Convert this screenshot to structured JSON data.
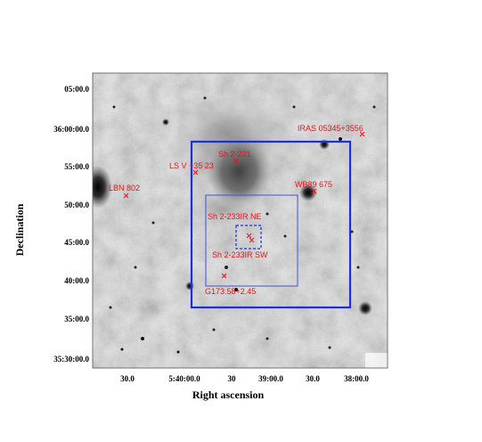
{
  "figure": {
    "xlabel": "Right ascension",
    "ylabel": "Declination",
    "x_ticks": [
      "30.0",
      "5:40:00.0",
      "30",
      "39:00.0",
      "30.0",
      "38:00.0"
    ],
    "y_ticks": [
      "05:00.0",
      "36:00:00.0",
      "55:00.0",
      "50:00.0",
      "45:00.0",
      "40:00.0",
      "35:00.0",
      "35:30:00.0"
    ],
    "sources": [
      {
        "name": "IRAS 05345+3556"
      },
      {
        "name": "Sh 2-231"
      },
      {
        "name": "LS V +35 23"
      },
      {
        "name": "LBN 802"
      },
      {
        "name": "WB89 675"
      },
      {
        "name": "Sh 2-233IR NE"
      },
      {
        "name": "Sh 2-233IR SW"
      },
      {
        "name": "G173.58+2.45"
      }
    ],
    "colors": {
      "labels": "#e8141c",
      "outer_box": "#1a2fe0",
      "middle_box": "#3f52d6",
      "inner_box": "#1a2fe0"
    }
  }
}
